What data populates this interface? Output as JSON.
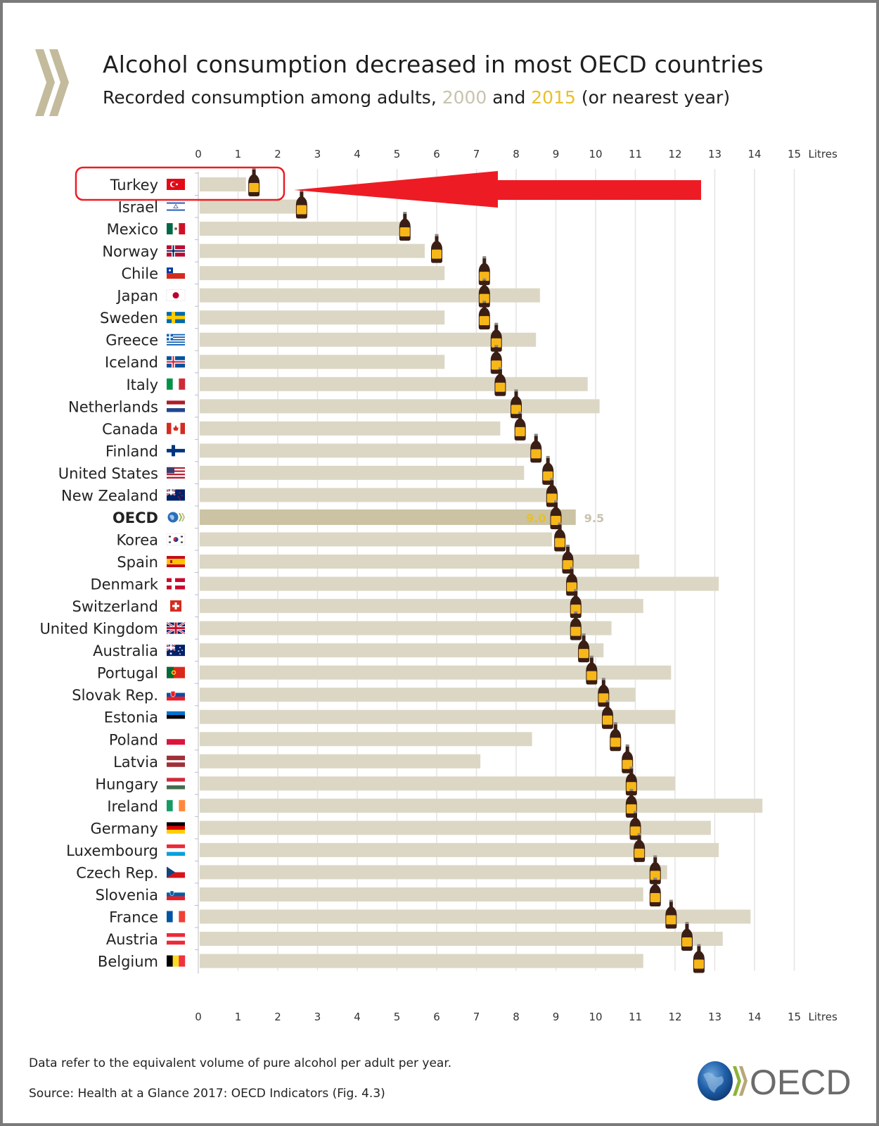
{
  "header": {
    "title": "Alcohol consumption decreased in most OECD countries",
    "subtitle_prefix": "Recorded consumption among adults, ",
    "subtitle_year1": "2000",
    "subtitle_mid": " and ",
    "subtitle_year2": "2015",
    "subtitle_suffix": " (or nearest year)"
  },
  "footer": {
    "note": "Data refer to the equivalent volume of pure alcohol per adult per year.",
    "source": "Source: Health at a Glance 2017: OECD Indicators (Fig. 4.3)",
    "logo_text": "OECD"
  },
  "annotation": {
    "highlighted_category": "Turkey",
    "type": "red-box-and-arrow",
    "color": "#ed1c24"
  },
  "colors": {
    "bar_2000": "#dcd7c5",
    "bar_oecd": "#cbc3a3",
    "year2000_text": "#c9c3ad",
    "year2015_text": "#e8c029",
    "gridline": "#e4e4e4",
    "bottle_dark": "#3b1f14",
    "bottle_label": "#f7b719"
  },
  "chart_data": {
    "type": "bar",
    "orientation": "horizontal",
    "title": "Alcohol consumption decreased in most OECD countries",
    "subtitle": "Recorded consumption among adults, 2000 and 2015 (or nearest year)",
    "xlabel": "Litres",
    "ylabel": "",
    "xlim": [
      0,
      15
    ],
    "xticks": [
      0,
      1,
      2,
      3,
      4,
      5,
      6,
      7,
      8,
      9,
      10,
      11,
      12,
      13,
      14,
      15
    ],
    "xaxis_unit_label": "Litres",
    "grid": true,
    "legend": "in subtitle",
    "categories": [
      "Turkey",
      "Israel",
      "Mexico",
      "Norway",
      "Chile",
      "Japan",
      "Sweden",
      "Greece",
      "Iceland",
      "Italy",
      "Netherlands",
      "Canada",
      "Finland",
      "United States",
      "New Zealand",
      "OECD",
      "Korea",
      "Spain",
      "Denmark",
      "Switzerland",
      "United Kingdom",
      "Australia",
      "Portugal",
      "Slovak Rep.",
      "Estonia",
      "Poland",
      "Latvia",
      "Hungary",
      "Ireland",
      "Germany",
      "Luxembourg",
      "Czech Rep.",
      "Slovenia",
      "France",
      "Austria",
      "Belgium"
    ],
    "flags": [
      "turkey-flag",
      "israel-flag",
      "mexico-flag",
      "norway-flag",
      "chile-flag",
      "japan-flag",
      "sweden-flag",
      "greece-flag",
      "iceland-flag",
      "italy-flag",
      "netherlands-flag",
      "canada-flag",
      "finland-flag",
      "united-states-flag",
      "new-zealand-flag",
      "oecd-logo",
      "korea-flag",
      "spain-flag",
      "denmark-flag",
      "switzerland-flag",
      "united-kingdom-flag",
      "australia-flag",
      "portugal-flag",
      "slovak-rep-flag",
      "estonia-flag",
      "poland-flag",
      "latvia-flag",
      "hungary-flag",
      "ireland-flag",
      "germany-flag",
      "luxembourg-flag",
      "czech-rep-flag",
      "slovenia-flag",
      "france-flag",
      "austria-flag",
      "belgium-flag"
    ],
    "highlight_category": "OECD",
    "series": [
      {
        "name": "2000",
        "mark": "bar",
        "values": [
          1.2,
          2.5,
          5.1,
          5.7,
          6.2,
          8.6,
          6.2,
          8.5,
          6.2,
          9.8,
          10.1,
          7.6,
          8.4,
          8.2,
          8.8,
          9.5,
          8.9,
          11.1,
          13.1,
          11.2,
          10.4,
          10.2,
          11.9,
          11.0,
          12.0,
          8.4,
          7.1,
          12.0,
          14.2,
          12.9,
          13.1,
          11.8,
          11.2,
          13.9,
          13.2,
          11.2
        ]
      },
      {
        "name": "2015",
        "mark": "bottle-icon",
        "values": [
          1.4,
          2.6,
          5.2,
          6.0,
          7.2,
          7.2,
          7.2,
          7.5,
          7.5,
          7.6,
          8.0,
          8.1,
          8.5,
          8.8,
          8.9,
          9.0,
          9.1,
          9.3,
          9.4,
          9.5,
          9.5,
          9.7,
          9.9,
          10.2,
          10.3,
          10.5,
          10.8,
          10.9,
          10.9,
          11.0,
          11.1,
          11.5,
          11.5,
          11.9,
          12.3,
          12.6
        ]
      }
    ],
    "data_labels": [
      {
        "category": "OECD",
        "series": "2015",
        "text": "9.0"
      },
      {
        "category": "OECD",
        "series": "2000",
        "text": "9.5"
      }
    ]
  }
}
